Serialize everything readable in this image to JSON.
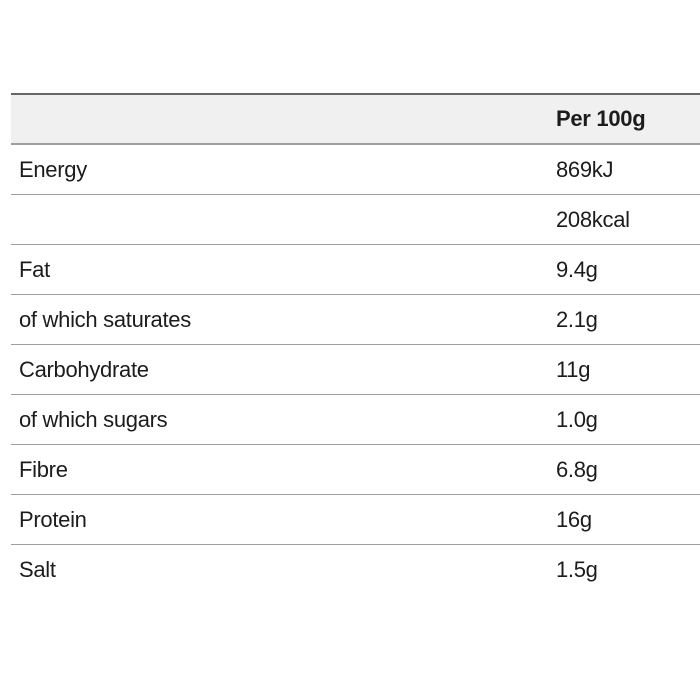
{
  "colors": {
    "header_bg": "#f0f0f0",
    "top_border": "#666666",
    "divider": "#9e9e9e",
    "text": "#1c1c1c",
    "page_bg": "#ffffff"
  },
  "table": {
    "header": {
      "label": "",
      "per_100g": "Per 100g"
    },
    "rows": [
      {
        "label": "Energy",
        "value": "869kJ"
      },
      {
        "label": "",
        "value": "208kcal"
      },
      {
        "label": "Fat",
        "value": "9.4g"
      },
      {
        "label": "of which saturates",
        "value": "2.1g"
      },
      {
        "label": "Carbohydrate",
        "value": "11g"
      },
      {
        "label": "of which sugars",
        "value": "1.0g"
      },
      {
        "label": "Fibre",
        "value": "6.8g"
      },
      {
        "label": "Protein",
        "value": "16g"
      },
      {
        "label": "Salt",
        "value": "1.5g"
      }
    ]
  }
}
